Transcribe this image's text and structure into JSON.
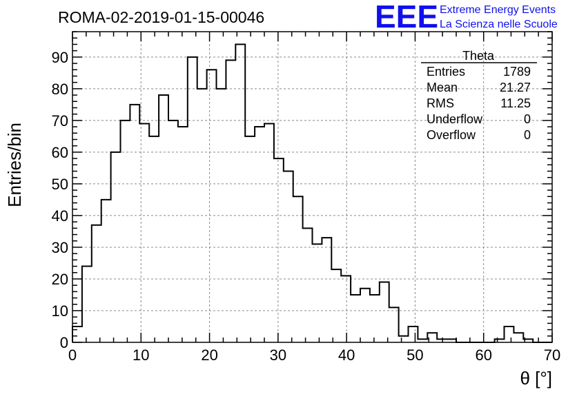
{
  "chart_data": {
    "type": "bar",
    "title": "ROMA-02-2019-01-15-00046",
    "xlabel": "θ [°]",
    "ylabel": "Entries/bin",
    "xlim": [
      0,
      70
    ],
    "ylim": [
      0,
      98
    ],
    "bin_width": 1.4,
    "bin_start": 0,
    "values": [
      5,
      24,
      37,
      45,
      60,
      70,
      75,
      69,
      65,
      78,
      70,
      68,
      90,
      80,
      86,
      80,
      89,
      94,
      65,
      68,
      69,
      58,
      54,
      46,
      36,
      31,
      33,
      23,
      21,
      15,
      17,
      15,
      19,
      11,
      2,
      5,
      1,
      3,
      1,
      1,
      0,
      0,
      0,
      0,
      1,
      5,
      3,
      1,
      0,
      0
    ],
    "x_ticks": [
      0,
      10,
      20,
      30,
      40,
      50,
      60,
      70
    ],
    "y_ticks": [
      0,
      10,
      20,
      30,
      40,
      50,
      60,
      70,
      80,
      90
    ],
    "grid": true,
    "stats_box": {
      "title": "Theta",
      "rows": [
        {
          "label": "Entries",
          "value": "1789"
        },
        {
          "label": "Mean",
          "value": "21.27"
        },
        {
          "label": "RMS",
          "value": "11.25"
        },
        {
          "label": "Underflow",
          "value": "0"
        },
        {
          "label": "Overflow",
          "value": "0"
        }
      ],
      "placement": "top-right"
    },
    "color": "#000000"
  },
  "logo": {
    "mark": "EEE",
    "line1": "Extreme Energy Events",
    "line2": "La Scienza nelle Scuole",
    "color": "#1010ee"
  }
}
